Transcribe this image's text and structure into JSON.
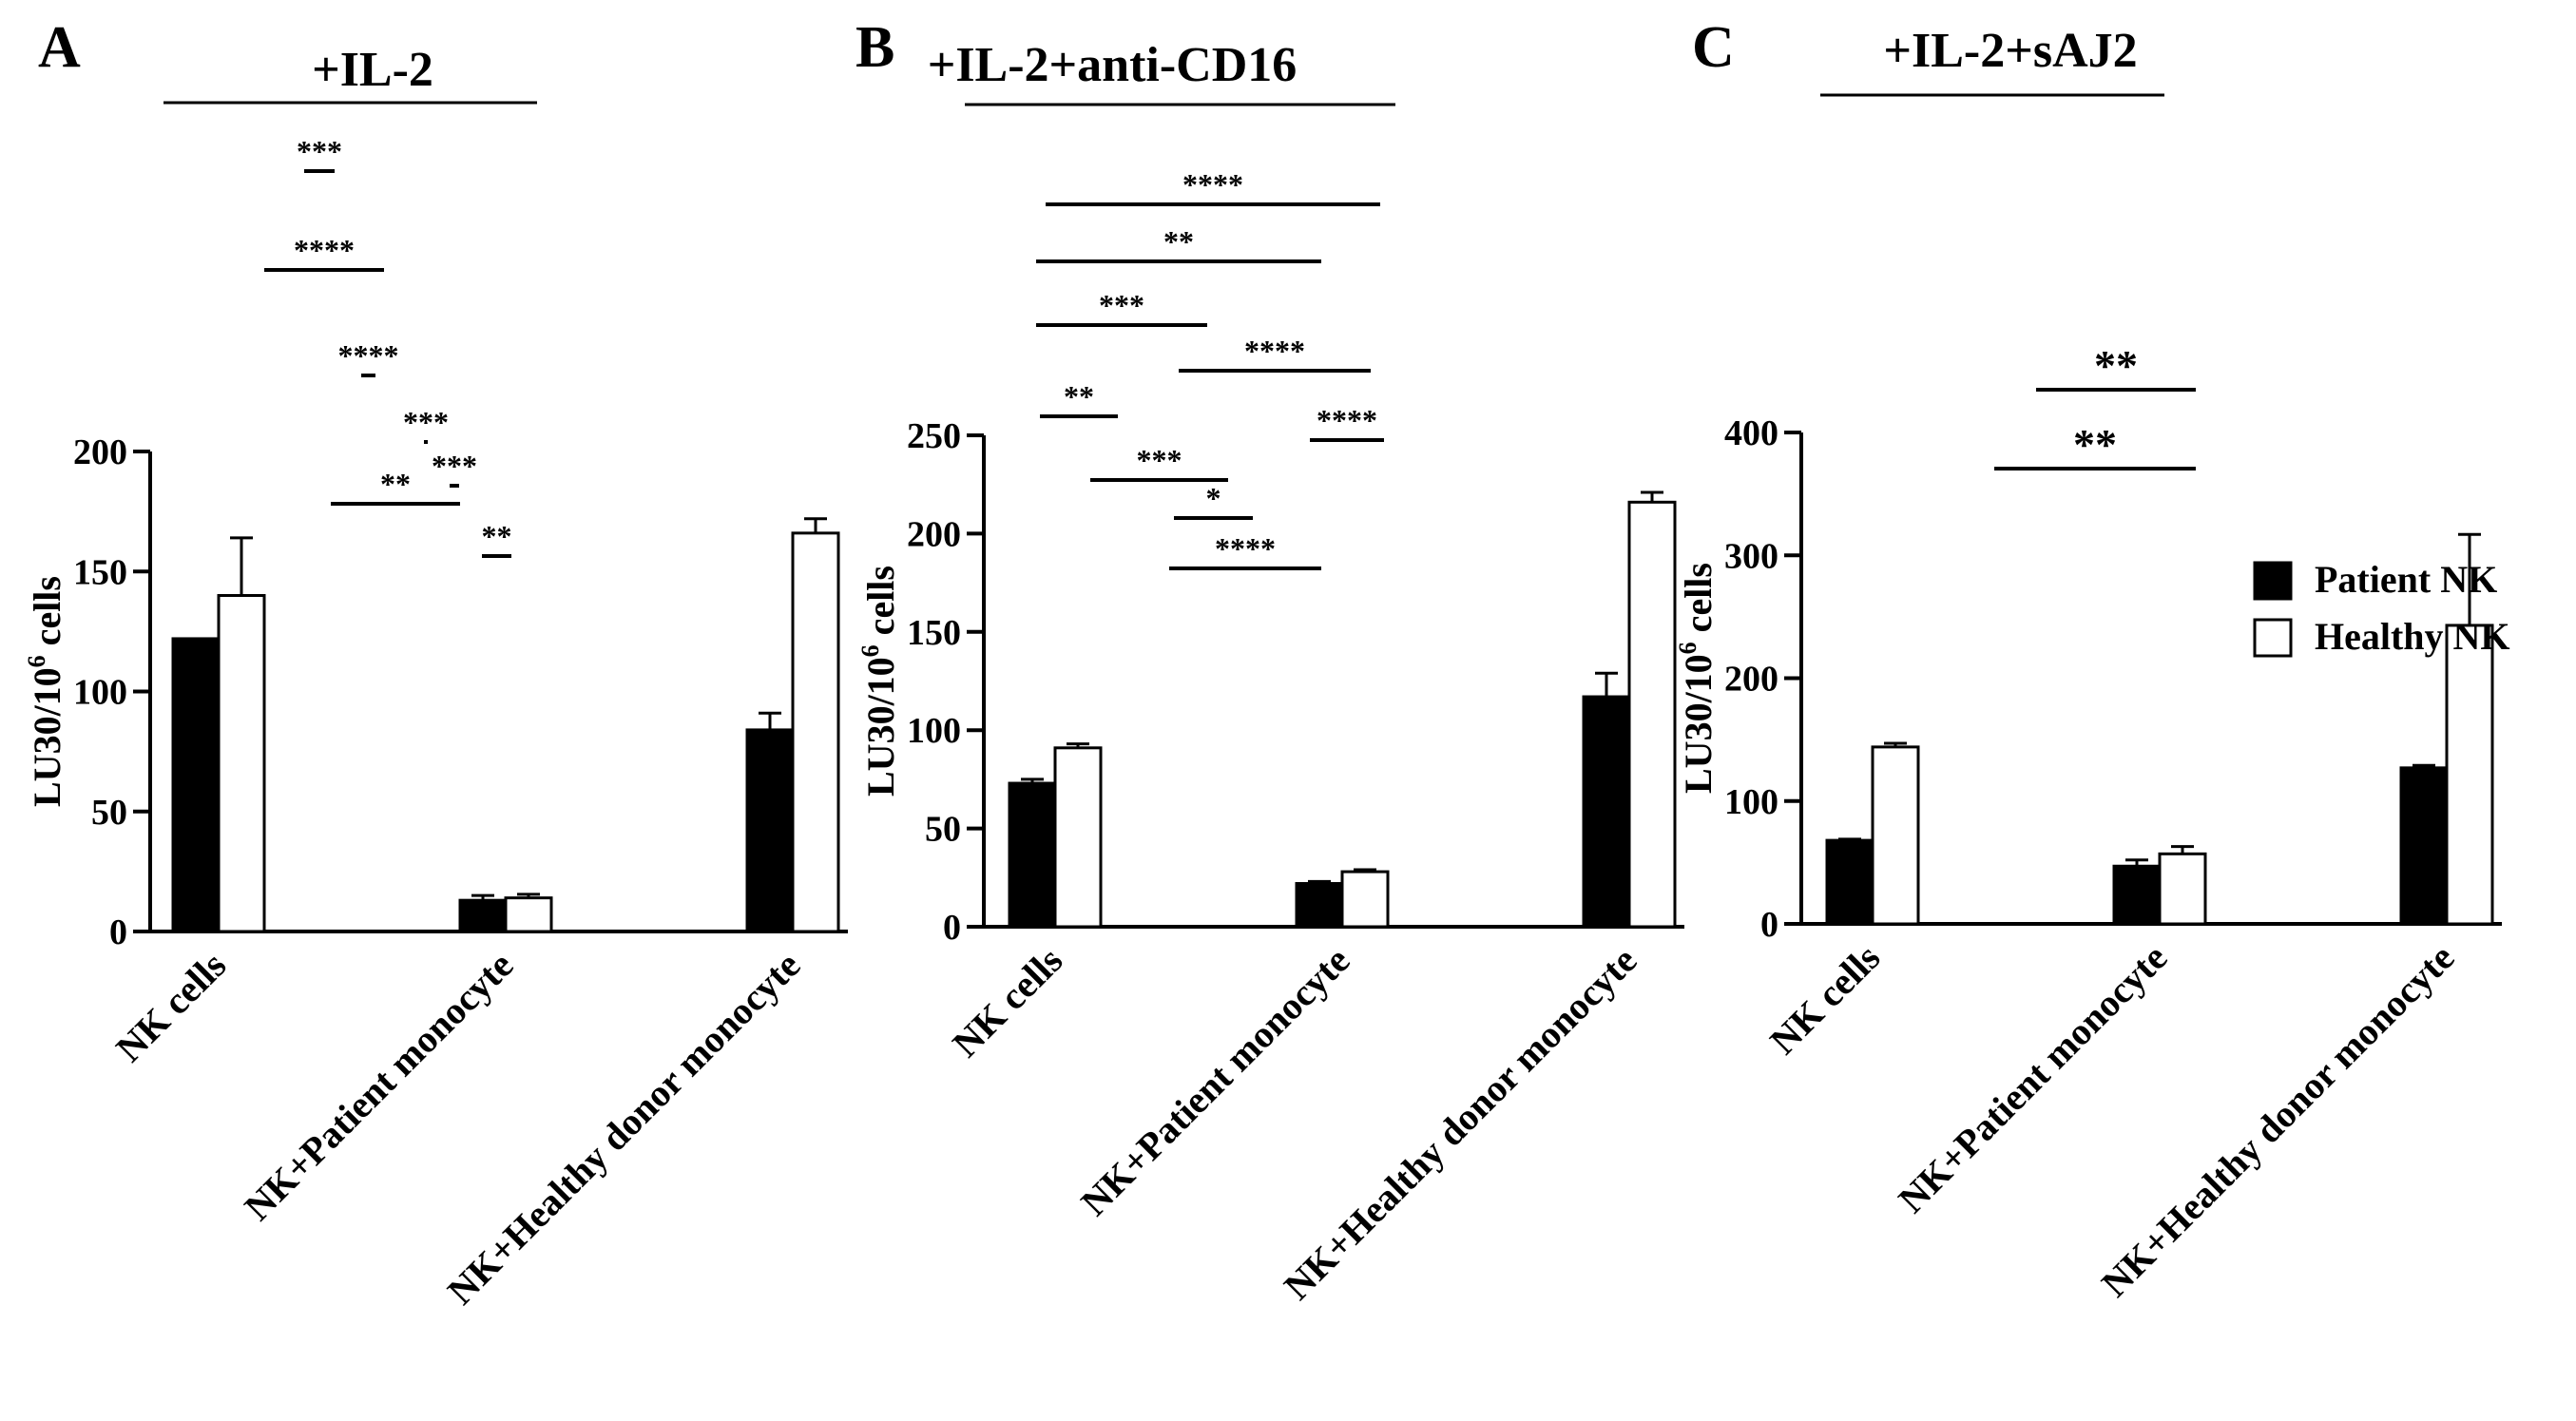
{
  "colors": {
    "patient": "#000000",
    "healthy": "#ffffff",
    "ink": "#000000"
  },
  "legend": {
    "position": "right",
    "items": [
      {
        "label": "Patient NK",
        "color": "#000000"
      },
      {
        "label": "Healthy NK",
        "color": "#ffffff"
      }
    ]
  },
  "chart_data": [
    {
      "type": "bar",
      "panel_letter": "A",
      "title": "+IL-2",
      "ylabel": "LU30/10^6 cells",
      "ylabel_base": "LU30/10",
      "ylabel_sup": "6",
      "ylabel_tail": " cells",
      "ylim": [
        0,
        200
      ],
      "yticks": [
        0,
        50,
        100,
        150,
        200
      ],
      "categories": [
        "NK cells",
        "NK+Patient monocyte",
        "NK+Healthy donor monocyte"
      ],
      "series": [
        {
          "name": "Patient NK",
          "values": [
            122,
            13,
            84
          ],
          "errors": [
            0,
            2,
            7
          ]
        },
        {
          "name": "Healthy NK",
          "values": [
            140,
            14,
            166
          ],
          "errors": [
            24,
            1.5,
            6
          ]
        }
      ],
      "significance": [
        {
          "from": [
            0,
            0
          ],
          "to": [
            2,
            0
          ],
          "label": "***"
        },
        {
          "from": [
            1,
            1
          ],
          "to": [
            2,
            1
          ],
          "label": "****"
        },
        {
          "from": [
            1,
            0
          ],
          "to": [
            2,
            1
          ],
          "label": "****"
        },
        {
          "from": [
            0,
            0
          ],
          "to": [
            1,
            0
          ],
          "label": "***"
        },
        {
          "from": [
            2,
            0
          ],
          "to": [
            2,
            1
          ],
          "label": "**"
        },
        {
          "from": [
            0,
            1
          ],
          "to": [
            1,
            1
          ],
          "label": "***"
        },
        {
          "from": [
            1,
            0
          ],
          "to": [
            2,
            0
          ],
          "label": "**"
        }
      ]
    },
    {
      "type": "bar",
      "panel_letter": "B",
      "title": "+IL-2+anti-CD16",
      "ylabel": "LU30/10^6 cells",
      "ylabel_base": "LU30/10",
      "ylabel_sup": "6",
      "ylabel_tail": " cells",
      "ylim": [
        0,
        250
      ],
      "yticks": [
        0,
        50,
        100,
        150,
        200,
        250
      ],
      "categories": [
        "NK cells",
        "NK+Patient monocyte",
        "NK+Healthy donor monocyte"
      ],
      "series": [
        {
          "name": "Patient NK",
          "values": [
            73,
            22,
            117
          ],
          "errors": [
            2,
            1,
            12
          ]
        },
        {
          "name": "Healthy NK",
          "values": [
            91,
            28,
            216
          ],
          "errors": [
            2,
            1,
            5
          ]
        }
      ],
      "significance": [
        {
          "from": [
            0,
            1
          ],
          "to": [
            2,
            1
          ],
          "label": "****"
        },
        {
          "from": [
            0,
            0
          ],
          "to": [
            2,
            0
          ],
          "label": "**"
        },
        {
          "from": [
            0,
            0
          ],
          "to": [
            1,
            0
          ],
          "label": "***"
        },
        {
          "from": [
            1,
            0
          ],
          "to": [
            2,
            1
          ],
          "label": "****"
        },
        {
          "from": [
            0,
            0
          ],
          "to": [
            0,
            1
          ],
          "label": "**"
        },
        {
          "from": [
            2,
            0
          ],
          "to": [
            2,
            1
          ],
          "label": "****"
        },
        {
          "from": [
            0,
            1
          ],
          "to": [
            1,
            1
          ],
          "label": "***"
        },
        {
          "from": [
            1,
            0
          ],
          "to": [
            1,
            1
          ],
          "label": "*"
        },
        {
          "from": [
            1,
            0
          ],
          "to": [
            2,
            0
          ],
          "label": "****"
        }
      ]
    },
    {
      "type": "bar",
      "panel_letter": "C",
      "title": "+IL-2+sAJ2",
      "ylabel": "LU30/10^6 cells",
      "ylabel_base": "LU30/10",
      "ylabel_sup": "6",
      "ylabel_tail": " cells",
      "ylim": [
        0,
        400
      ],
      "yticks": [
        0,
        100,
        200,
        300,
        400
      ],
      "categories": [
        "NK cells",
        "NK+Patient monocyte",
        "NK+Healthy donor monocyte"
      ],
      "series": [
        {
          "name": "Patient NK",
          "values": [
            68,
            47,
            127
          ],
          "errors": [
            1,
            5,
            2
          ]
        },
        {
          "name": "Healthy NK",
          "values": [
            144,
            57,
            243
          ],
          "errors": [
            3,
            6,
            74
          ]
        }
      ],
      "significance": [
        {
          "from": [
            1,
            1
          ],
          "to": [
            2,
            1
          ],
          "label": "**"
        },
        {
          "from": [
            1,
            0
          ],
          "to": [
            2,
            1
          ],
          "label": "**"
        }
      ]
    }
  ]
}
